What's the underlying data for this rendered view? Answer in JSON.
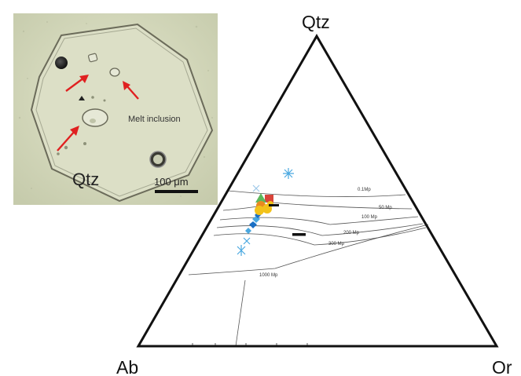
{
  "photo": {
    "mineral_label": "Qtz",
    "annotation": "Melt inclusion",
    "scale_bar": "100 μm"
  },
  "ternary": {
    "vertices": {
      "top": "Qtz",
      "left": "Ab",
      "right": "Or"
    },
    "isobar_labels": [
      "0.1Mp",
      "50 Mp",
      "100 Mp",
      "200 Mp",
      "300 Mp",
      "1000 Mp"
    ]
  },
  "colors": {
    "arrow": "#e02020",
    "photo_bg": "#d7dcc0",
    "light_blue": "#4aa8e0",
    "blue": "#1a6fc4",
    "yellow": "#f2c21a",
    "orange": "#e88a20",
    "green": "#5cb85c",
    "red": "#d9443a"
  },
  "icons": [
    "arrow-icon",
    "bubble-icon"
  ]
}
